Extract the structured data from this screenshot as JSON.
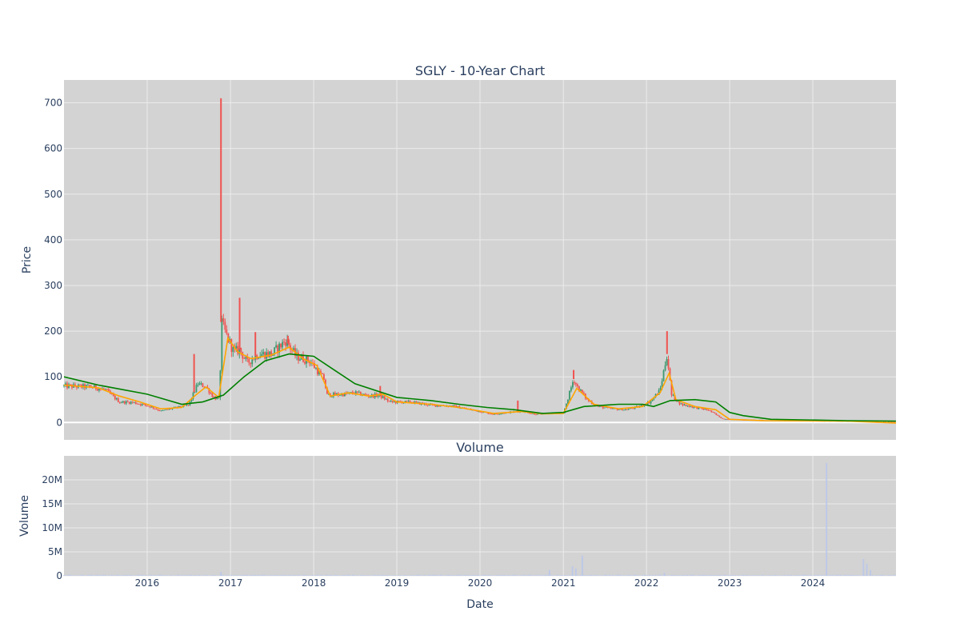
{
  "colors": {
    "plot_bg": "#d3d3d3",
    "grid": "#ebebeb",
    "candle_up": "#26a69a",
    "candle_up_line": "#3d9970",
    "candle_down": "#ef5350",
    "ma_short": "#ffa500",
    "ma_long": "#008000",
    "volume_bar": "#bcc8e8",
    "text": "#2a3f5f"
  },
  "chart_data": [
    {
      "type": "candlestick",
      "title": "SGLY - 10-Year Chart",
      "ylabel": "Price",
      "xlim": [
        "2015-01-01",
        "2024-12-31"
      ],
      "ylim": [
        -38,
        750
      ],
      "yticks": [
        0,
        100,
        200,
        300,
        400,
        500,
        600,
        700
      ],
      "ytick_labels": [
        "0",
        "100",
        "200",
        "300",
        "400",
        "500",
        "600",
        "700"
      ],
      "grid": true,
      "price_anchors": [
        [
          "2015-01-01",
          80
        ],
        [
          "2015-03-01",
          79
        ],
        [
          "2015-05-01",
          78
        ],
        [
          "2015-07-01",
          72
        ],
        [
          "2015-09-01",
          45
        ],
        [
          "2015-11-01",
          44
        ],
        [
          "2016-01-15",
          35
        ],
        [
          "2016-03-01",
          25
        ],
        [
          "2016-05-01",
          32
        ],
        [
          "2016-07-01",
          38
        ],
        [
          "2016-08-10",
          85
        ],
        [
          "2016-09-15",
          78
        ],
        [
          "2016-10-20",
          55
        ],
        [
          "2016-11-15",
          50
        ],
        [
          "2016-11-20",
          220
        ],
        [
          "2016-12-15",
          190
        ],
        [
          "2017-01-15",
          155
        ],
        [
          "2017-02-10",
          160
        ],
        [
          "2017-03-15",
          130
        ],
        [
          "2017-05-01",
          150
        ],
        [
          "2017-07-01",
          150
        ],
        [
          "2017-09-01",
          180
        ],
        [
          "2017-10-15",
          145
        ],
        [
          "2017-12-15",
          135
        ],
        [
          "2018-02-15",
          95
        ],
        [
          "2018-03-01",
          60
        ],
        [
          "2018-05-15",
          62
        ],
        [
          "2018-07-01",
          65
        ],
        [
          "2018-09-01",
          58
        ],
        [
          "2018-10-15",
          60
        ],
        [
          "2018-12-01",
          45
        ],
        [
          "2019-03-01",
          45
        ],
        [
          "2019-06-01",
          38
        ],
        [
          "2019-09-01",
          36
        ],
        [
          "2019-11-01",
          30
        ],
        [
          "2020-03-01",
          18
        ],
        [
          "2020-05-01",
          22
        ],
        [
          "2020-07-01",
          25
        ],
        [
          "2020-09-01",
          18
        ],
        [
          "2020-11-01",
          20
        ],
        [
          "2021-01-01",
          20
        ],
        [
          "2021-02-15",
          95
        ],
        [
          "2021-03-01",
          80
        ],
        [
          "2021-04-15",
          50
        ],
        [
          "2021-06-01",
          35
        ],
        [
          "2021-08-01",
          30
        ],
        [
          "2021-10-01",
          28
        ],
        [
          "2021-12-01",
          35
        ],
        [
          "2022-01-15",
          45
        ],
        [
          "2022-03-01",
          70
        ],
        [
          "2022-04-01",
          150
        ],
        [
          "2022-04-20",
          60
        ],
        [
          "2022-06-01",
          40
        ],
        [
          "2022-08-01",
          33
        ],
        [
          "2022-10-01",
          27
        ],
        [
          "2022-12-01",
          8
        ],
        [
          "2023-03-01",
          6
        ],
        [
          "2023-06-01",
          5
        ],
        [
          "2023-12-01",
          4
        ],
        [
          "2024-06-01",
          3
        ],
        [
          "2024-12-31",
          1
        ]
      ],
      "spikes": [
        [
          "2016-07-25",
          150
        ],
        [
          "2016-11-20",
          710
        ],
        [
          "2017-02-10",
          273
        ],
        [
          "2017-04-20",
          198
        ],
        [
          "2017-09-10",
          190
        ],
        [
          "2018-10-20",
          80
        ],
        [
          "2020-06-15",
          48
        ],
        [
          "2021-02-15",
          115
        ],
        [
          "2022-04-01",
          200
        ]
      ],
      "series": [
        {
          "kind": "moving-average-short",
          "points": [
            [
              "2015-01-01",
              82
            ],
            [
              "2015-06-01",
              76
            ],
            [
              "2015-09-01",
              58
            ],
            [
              "2015-12-01",
              45
            ],
            [
              "2016-03-01",
              30
            ],
            [
              "2016-06-01",
              33
            ],
            [
              "2016-08-01",
              60
            ],
            [
              "2016-09-15",
              78
            ],
            [
              "2016-11-10",
              55
            ],
            [
              "2016-12-20",
              185
            ],
            [
              "2017-02-01",
              155
            ],
            [
              "2017-04-01",
              140
            ],
            [
              "2017-07-01",
              148
            ],
            [
              "2017-09-15",
              165
            ],
            [
              "2017-11-15",
              140
            ],
            [
              "2018-01-15",
              125
            ],
            [
              "2018-03-15",
              58
            ],
            [
              "2018-06-01",
              65
            ],
            [
              "2018-09-01",
              58
            ],
            [
              "2018-11-01",
              62
            ],
            [
              "2019-01-01",
              45
            ],
            [
              "2019-06-01",
              40
            ],
            [
              "2019-10-01",
              33
            ],
            [
              "2020-03-01",
              20
            ],
            [
              "2020-07-01",
              24
            ],
            [
              "2020-10-01",
              19
            ],
            [
              "2021-01-01",
              20
            ],
            [
              "2021-03-01",
              75
            ],
            [
              "2021-05-15",
              40
            ],
            [
              "2021-09-01",
              30
            ],
            [
              "2021-12-15",
              35
            ],
            [
              "2022-03-01",
              65
            ],
            [
              "2022-04-10",
              108
            ],
            [
              "2022-05-10",
              50
            ],
            [
              "2022-08-01",
              35
            ],
            [
              "2022-11-01",
              28
            ],
            [
              "2023-01-01",
              7
            ],
            [
              "2023-06-01",
              4
            ],
            [
              "2024-06-01",
              3
            ],
            [
              "2024-12-31",
              -1
            ]
          ]
        },
        {
          "kind": "moving-average-long",
          "points": [
            [
              "2015-01-01",
              100
            ],
            [
              "2015-06-01",
              82
            ],
            [
              "2016-01-01",
              62
            ],
            [
              "2016-06-01",
              40
            ],
            [
              "2016-09-01",
              45
            ],
            [
              "2016-12-01",
              60
            ],
            [
              "2017-03-01",
              100
            ],
            [
              "2017-06-01",
              135
            ],
            [
              "2017-09-15",
              150
            ],
            [
              "2018-01-01",
              145
            ],
            [
              "2018-04-01",
              115
            ],
            [
              "2018-07-01",
              85
            ],
            [
              "2019-01-01",
              55
            ],
            [
              "2019-06-01",
              48
            ],
            [
              "2019-10-01",
              40
            ],
            [
              "2020-02-01",
              33
            ],
            [
              "2020-06-01",
              28
            ],
            [
              "2020-10-01",
              20
            ],
            [
              "2021-01-01",
              22
            ],
            [
              "2021-04-01",
              35
            ],
            [
              "2021-09-01",
              40
            ],
            [
              "2021-12-15",
              40
            ],
            [
              "2022-02-01",
              35
            ],
            [
              "2022-04-15",
              48
            ],
            [
              "2022-08-01",
              50
            ],
            [
              "2022-11-01",
              45
            ],
            [
              "2023-01-01",
              22
            ],
            [
              "2023-03-01",
              15
            ],
            [
              "2023-07-01",
              7
            ],
            [
              "2024-06-01",
              4
            ],
            [
              "2024-12-31",
              3
            ]
          ]
        }
      ]
    },
    {
      "type": "bar",
      "title": "Volume",
      "ylabel": "Volume",
      "xlabel": "Date",
      "xlim": [
        "2015-01-01",
        "2024-12-31"
      ],
      "ylim": [
        0,
        25000000
      ],
      "yticks": [
        0,
        5000000,
        10000000,
        15000000,
        20000000
      ],
      "ytick_labels": [
        "0",
        "5M",
        "10M",
        "15M",
        "20M"
      ],
      "xtick_dates": [
        "2016-01-01",
        "2017-01-01",
        "2018-01-01",
        "2019-01-01",
        "2020-01-01",
        "2021-01-01",
        "2022-01-01",
        "2023-01-01",
        "2024-01-01"
      ],
      "xtick_labels": [
        "2016",
        "2017",
        "2018",
        "2019",
        "2020",
        "2021",
        "2022",
        "2023",
        "2024"
      ],
      "baseline": 150000,
      "events": [
        [
          "2016-11-20",
          800000
        ],
        [
          "2020-11-01",
          1200000
        ],
        [
          "2021-02-10",
          2000000
        ],
        [
          "2021-02-25",
          1500000
        ],
        [
          "2021-03-25",
          4200000
        ],
        [
          "2022-03-20",
          600000
        ],
        [
          "2024-03-01",
          23500000
        ],
        [
          "2024-08-10",
          3500000
        ],
        [
          "2024-08-25",
          2500000
        ],
        [
          "2024-09-10",
          1200000
        ]
      ],
      "grid": true
    }
  ]
}
